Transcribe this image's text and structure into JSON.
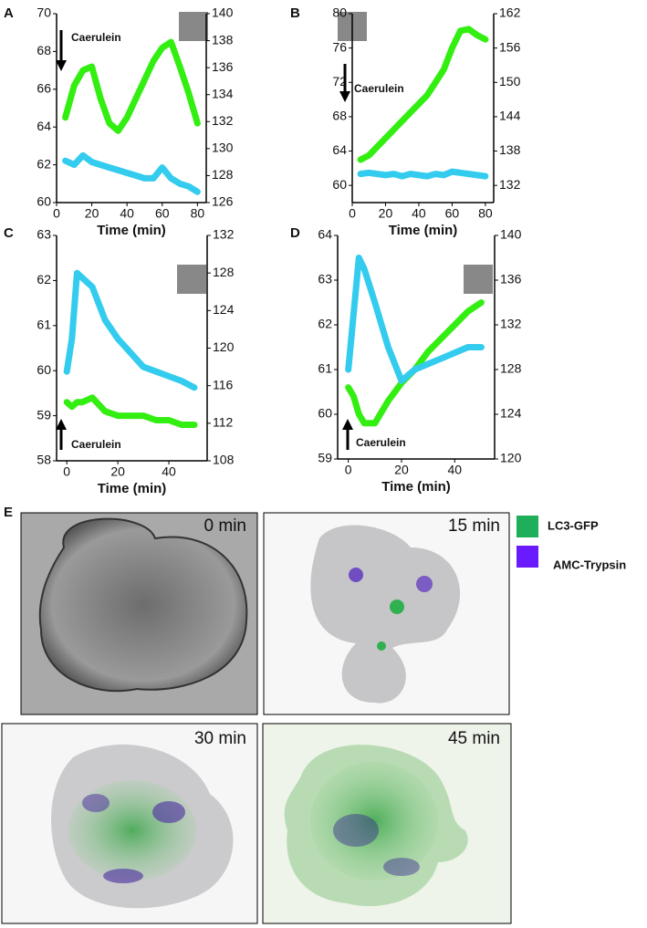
{
  "chart_data": [
    {
      "type": "line",
      "panel": "A",
      "xlabel": "Time (min)",
      "annotation": "Caerulein",
      "x": [
        5,
        10,
        15,
        20,
        25,
        30,
        35,
        40,
        45,
        50,
        55,
        60,
        65,
        70,
        75,
        80
      ],
      "xlim": [
        0,
        85
      ],
      "xticks": [
        0,
        20,
        40,
        60,
        80
      ],
      "ylim": [
        60,
        70
      ],
      "yticks": [
        60,
        62,
        64,
        66,
        68,
        70
      ],
      "y2lim": [
        126,
        140
      ],
      "y2ticks": [
        126,
        128,
        130,
        132,
        134,
        136,
        138,
        140
      ],
      "series": [
        {
          "color": "#33ee11",
          "values": [
            64.5,
            66.2,
            67,
            67.2,
            65.5,
            64.2,
            63.8,
            64.5,
            65.5,
            66.5,
            67.5,
            68.2,
            68.5,
            67.2,
            65.8,
            64.2
          ]
        },
        {
          "color": "#33ccee",
          "axis": "y2",
          "values": [
            129.1,
            128.8,
            129.5,
            129,
            128.8,
            128.6,
            128.4,
            128.2,
            128,
            127.8,
            127.8,
            128.6,
            127.8,
            127.4,
            127.2,
            126.8
          ]
        }
      ]
    },
    {
      "type": "line",
      "panel": "B",
      "xlabel": "Time (min)",
      "annotation": "Caerulein",
      "x": [
        5,
        10,
        15,
        20,
        25,
        30,
        35,
        40,
        45,
        50,
        55,
        60,
        65,
        70,
        75,
        80
      ],
      "xlim": [
        0,
        85
      ],
      "xticks": [
        0,
        20,
        40,
        60,
        80
      ],
      "ylim": [
        58,
        80
      ],
      "yticks": [
        60,
        64,
        68,
        72,
        76,
        80
      ],
      "y2lim": [
        129,
        162
      ],
      "y2ticks": [
        132,
        138,
        144,
        150,
        156,
        162
      ],
      "series": [
        {
          "color": "#33ee11",
          "values": [
            63,
            63.5,
            64.5,
            65.5,
            66.5,
            67.5,
            68.5,
            69.5,
            70.5,
            72,
            73.5,
            76,
            78,
            78.2,
            77.5,
            77
          ]
        },
        {
          "color": "#33ccee",
          "axis": "y2",
          "values": [
            134,
            134.2,
            134,
            133.8,
            134,
            133.6,
            134,
            133.8,
            133.6,
            134,
            133.8,
            134.4,
            134.2,
            134,
            133.8,
            133.6
          ]
        }
      ]
    },
    {
      "type": "line",
      "panel": "C",
      "xlabel": "Time (min)",
      "annotation": "Caerulein",
      "x": [
        0,
        2,
        4,
        6,
        10,
        15,
        20,
        25,
        30,
        35,
        40,
        45,
        50
      ],
      "xlim": [
        -4,
        55
      ],
      "xticks": [
        0,
        20,
        40
      ],
      "ylim": [
        58,
        63
      ],
      "yticks": [
        58,
        59,
        60,
        61,
        62,
        63
      ],
      "y2lim": [
        108,
        132
      ],
      "y2ticks": [
        108,
        112,
        116,
        120,
        124,
        128,
        132
      ],
      "series": [
        {
          "color": "#33ee11",
          "values": [
            59.3,
            59.2,
            59.3,
            59.3,
            59.4,
            59.1,
            59,
            59,
            59,
            58.9,
            58.9,
            58.8,
            58.8
          ]
        },
        {
          "color": "#33ccee",
          "axis": "y2",
          "values": [
            117.5,
            121,
            128,
            127.5,
            126.5,
            123,
            121,
            119.5,
            118,
            117.5,
            117,
            116.5,
            115.8
          ]
        }
      ]
    },
    {
      "type": "line",
      "panel": "D",
      "xlabel": "Time (min)",
      "annotation": "Caerulein",
      "x": [
        0,
        2,
        4,
        6,
        10,
        15,
        20,
        25,
        30,
        35,
        40,
        45,
        50
      ],
      "xlim": [
        -4,
        55
      ],
      "xticks": [
        0,
        20,
        40
      ],
      "ylim": [
        59,
        64
      ],
      "yticks": [
        59,
        60,
        61,
        62,
        63,
        64
      ],
      "y2lim": [
        120,
        140
      ],
      "y2ticks": [
        120,
        124,
        128,
        132,
        136,
        140
      ],
      "series": [
        {
          "color": "#33ee11",
          "values": [
            60.6,
            60.4,
            60,
            59.8,
            59.8,
            60.3,
            60.7,
            61,
            61.4,
            61.7,
            62,
            62.3,
            62.5
          ]
        },
        {
          "color": "#33ccee",
          "axis": "y2",
          "values": [
            128,
            133,
            138,
            137,
            134,
            130,
            127,
            128,
            128.5,
            129,
            129.5,
            130,
            130
          ]
        }
      ]
    }
  ],
  "panel_e": {
    "label": "E",
    "images": [
      "0 min",
      "15 min",
      "30 min",
      "45 min"
    ],
    "legend": [
      "LC3-GFP",
      "AMC-Trypsin"
    ]
  }
}
